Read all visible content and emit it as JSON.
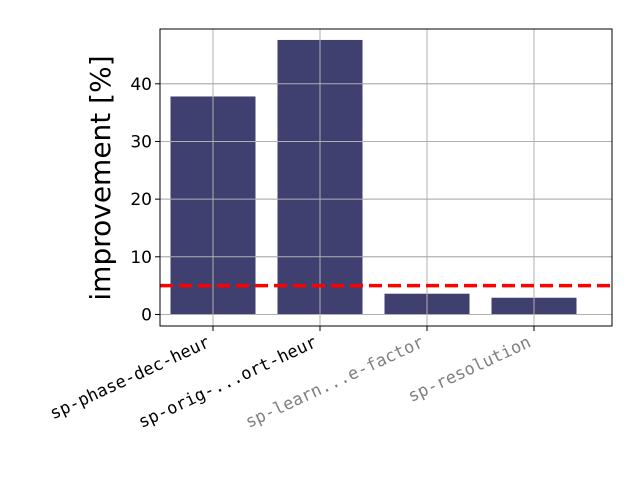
{
  "chart_data": {
    "type": "bar",
    "title": "",
    "xlabel": "",
    "ylabel": "improvement [%]",
    "categories": [
      "sp-phase-dec-heur",
      "sp-orig-...ort-heur",
      "sp-learn...e-factor",
      "sp-resolution"
    ],
    "category_colors": [
      "#000000",
      "#000000",
      "#808080",
      "#808080"
    ],
    "values": [
      37.8,
      47.6,
      3.6,
      2.9
    ],
    "bar_color": "#3f3f70",
    "ylim": [
      -2,
      49.5
    ],
    "yticks": [
      0,
      10,
      20,
      30,
      40
    ],
    "grid": true,
    "threshold": {
      "value": 5,
      "color": "#ff0000",
      "style": "dashed"
    }
  }
}
